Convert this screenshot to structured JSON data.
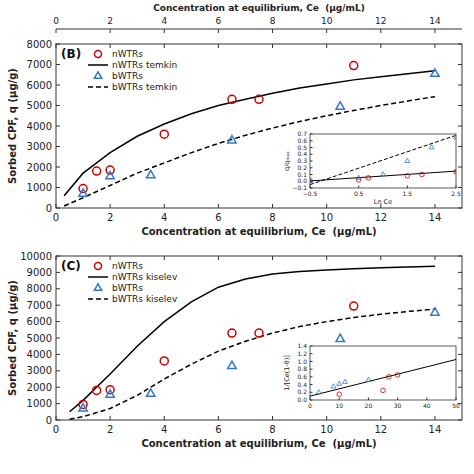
{
  "chart_data": [
    {
      "type": "axis",
      "xlabel": "Concentration at equilibrium, Ce  (μg/mL)",
      "xlim": [
        0,
        15
      ],
      "xticks": [
        0,
        2,
        4,
        6,
        8,
        10,
        12,
        14
      ]
    },
    {
      "type": "line",
      "title": "(B)",
      "xlabel": "Concentration at equilibrium, Ce  (μg/mL)",
      "ylabel": "Sorbed CPF, q (μg/g)",
      "xlim": [
        0,
        15
      ],
      "xticks": [
        0,
        2,
        4,
        6,
        8,
        10,
        12,
        14
      ],
      "ylim": [
        0,
        8000
      ],
      "yticks": [
        0,
        1000,
        2000,
        3000,
        4000,
        5000,
        6000,
        7000,
        8000
      ],
      "legend": "upper left",
      "series": [
        {
          "name": "nWTRs",
          "type": "scatter",
          "marker": "circle",
          "color": "#cc0000",
          "x": [
            1.0,
            1.5,
            2.0,
            4.0,
            6.5,
            7.5,
            11.0
          ],
          "values": [
            950,
            1800,
            1850,
            3600,
            5300,
            5300,
            6950
          ]
        },
        {
          "name": "nWTRs temkin",
          "type": "line",
          "line_style": "solid",
          "color": "#000000",
          "x": [
            0.3,
            1.0,
            2.0,
            3.0,
            4.0,
            5.0,
            6.0,
            7.0,
            8.0,
            9.0,
            10.0,
            11.0,
            12.0,
            13.0,
            14.0
          ],
          "values": [
            600,
            1700,
            2700,
            3500,
            4100,
            4600,
            5000,
            5300,
            5600,
            5850,
            6050,
            6250,
            6400,
            6550,
            6700
          ]
        },
        {
          "name": "bWTRs",
          "type": "scatter",
          "marker": "triangle",
          "color": "#3377cc",
          "x": [
            1.0,
            2.0,
            3.5,
            6.5,
            10.5,
            14.0
          ],
          "values": [
            700,
            1550,
            1600,
            3300,
            4950,
            6550
          ]
        },
        {
          "name": "bWTRs temkin",
          "type": "line",
          "line_style": "dashed",
          "color": "#000000",
          "x": [
            0.3,
            1.0,
            2.0,
            3.0,
            4.0,
            5.0,
            6.0,
            7.0,
            8.0,
            9.0,
            10.0,
            11.0,
            12.0,
            13.0,
            14.0
          ],
          "values": [
            100,
            500,
            1100,
            1700,
            2200,
            2700,
            3150,
            3550,
            3900,
            4220,
            4500,
            4760,
            5000,
            5220,
            5430
          ]
        }
      ]
    },
    {
      "type": "line",
      "xlabel": "Ln Ce",
      "ylabel": "q/qₘₐₓ",
      "xlim": [
        -0.5,
        2.5
      ],
      "xticks": [
        {
          "value": -0.5,
          "label": "−0.5"
        },
        0.5,
        1.5,
        2.5
      ],
      "ylim": [
        -0.1,
        0.7
      ],
      "yticks": [
        {
          "value": -0.1,
          "label": "−0.1"
        },
        {
          "value": 0,
          "label": "0.0"
        },
        0.1,
        0.2,
        0.3,
        0.4,
        0.5,
        0.6,
        0.7
      ],
      "series": [
        {
          "type": "line",
          "line_style": "solid",
          "color": "#000000",
          "x": [
            -0.5,
            2.5
          ],
          "values": [
            0.005,
            0.15
          ]
        },
        {
          "type": "line",
          "line_style": "dashed",
          "color": "#000000",
          "x": [
            -0.5,
            2.5
          ],
          "values": [
            -0.05,
            0.68
          ]
        },
        {
          "type": "scatter",
          "marker": "circle",
          "color": "#cc0000",
          "x": [
            -0.5,
            0.5,
            0.7,
            1.5,
            1.8,
            2.5
          ],
          "values": [
            0.01,
            0.02,
            0.05,
            0.08,
            0.1,
            0.14
          ]
        },
        {
          "type": "scatter",
          "marker": "triangle",
          "color": "#3377cc",
          "x": [
            -0.5,
            0.5,
            1.0,
            1.5,
            2.0,
            2.5
          ],
          "values": [
            0.0,
            0.05,
            0.1,
            0.3,
            0.5,
            0.65
          ]
        }
      ]
    },
    {
      "type": "line",
      "title": "(C)",
      "xlabel": "Concentration at equilibrium, Ce  (μg/mL)",
      "ylabel": "Sorbed CPF, q (μg/g)",
      "xlim": [
        0,
        15
      ],
      "xticks": [
        0,
        2,
        4,
        6,
        8,
        10,
        12,
        14
      ],
      "ylim": [
        0,
        10000
      ],
      "yticks": [
        0,
        1000,
        2000,
        3000,
        4000,
        5000,
        6000,
        7000,
        8000,
        9000,
        10000
      ],
      "legend": "upper left",
      "series": [
        {
          "name": "nWTRs",
          "type": "scatter",
          "marker": "circle",
          "color": "#cc0000",
          "x": [
            1.0,
            1.5,
            2.0,
            4.0,
            6.5,
            7.5,
            11.0
          ],
          "values": [
            950,
            1800,
            1850,
            3600,
            5300,
            5300,
            6950
          ]
        },
        {
          "name": "nWTRs kiselev",
          "type": "line",
          "line_style": "solid",
          "color": "#000000",
          "x": [
            0.5,
            1.0,
            2.0,
            3.0,
            4.0,
            5.0,
            6.0,
            7.0,
            8.0,
            9.0,
            10.0,
            11.0,
            12.0,
            13.0,
            14.0
          ],
          "values": [
            500,
            1200,
            2800,
            4500,
            6000,
            7200,
            8100,
            8600,
            8900,
            9050,
            9150,
            9220,
            9280,
            9330,
            9370
          ]
        },
        {
          "name": "bWTRs",
          "type": "scatter",
          "marker": "triangle",
          "color": "#3377cc",
          "x": [
            1.0,
            2.0,
            3.5,
            6.5,
            10.5,
            14.0
          ],
          "values": [
            700,
            1550,
            1600,
            3300,
            4950,
            6550
          ]
        },
        {
          "name": "bWTRs kiselev",
          "type": "line",
          "line_style": "dashed",
          "color": "#000000",
          "x": [
            0.5,
            1.0,
            2.0,
            3.0,
            4.0,
            5.0,
            6.0,
            7.0,
            8.0,
            9.0,
            10.0,
            11.0,
            12.0,
            13.0,
            14.0
          ],
          "values": [
            50,
            200,
            700,
            1500,
            2500,
            3400,
            4200,
            4800,
            5300,
            5700,
            6000,
            6250,
            6450,
            6620,
            6760
          ]
        }
      ]
    },
    {
      "type": "line",
      "ylabel": "1/[Ce(1-θ)]",
      "xlim": [
        0,
        50
      ],
      "xticks": [
        0,
        10,
        20,
        30,
        40,
        50
      ],
      "ylim": [
        0,
        1.4
      ],
      "yticks": [
        {
          "value": 0,
          "label": "0.0"
        },
        0.2,
        0.4,
        0.6,
        0.8,
        {
          "value": 1.0,
          "label": "1.0"
        },
        1.2,
        1.4
      ],
      "series": [
        {
          "type": "line",
          "line_style": "solid",
          "color": "#000000",
          "x": [
            0,
            50
          ],
          "values": [
            0.1,
            1.05
          ]
        },
        {
          "type": "scatter",
          "marker": "circle",
          "color": "#cc0000",
          "x": [
            10,
            25,
            27,
            30
          ],
          "values": [
            0.15,
            0.25,
            0.6,
            0.65
          ]
        },
        {
          "type": "scatter",
          "marker": "triangle",
          "color": "#3377cc",
          "x": [
            3,
            8,
            10,
            12,
            20
          ],
          "values": [
            0.2,
            0.35,
            0.42,
            0.47,
            0.52
          ]
        }
      ]
    }
  ]
}
